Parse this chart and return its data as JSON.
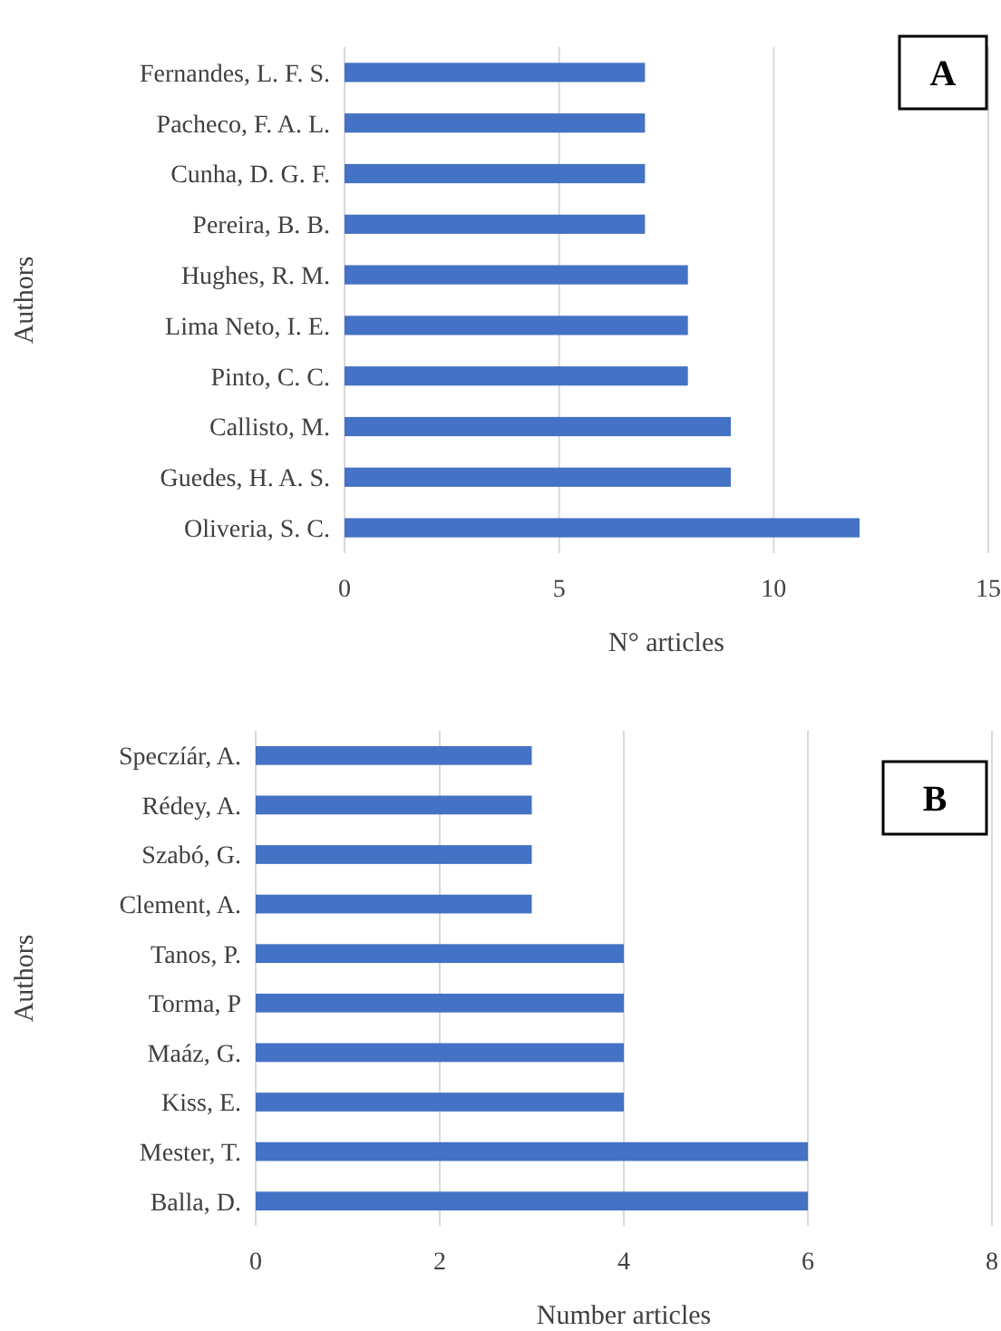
{
  "chart_data": [
    {
      "type": "bar",
      "orientation": "horizontal",
      "categories": [
        "Fernandes, L. F. S.",
        "Pacheco, F. A. L.",
        "Cunha, D. G. F.",
        "Pereira, B. B.",
        "Hughes, R. M.",
        "Lima Neto, I. E.",
        "Pinto, C. C.",
        "Callisto, M.",
        "Guedes, H. A. S.",
        "Oliveria, S. C."
      ],
      "values": [
        7,
        7,
        7,
        7,
        8,
        8,
        8,
        9,
        9,
        12
      ],
      "color": "#4472c4",
      "xlim": [
        0,
        15
      ],
      "xticks": [
        0,
        5,
        10,
        15
      ],
      "xlabel": "N° articles",
      "ylabel": "Authors",
      "grid": "x",
      "annotations": [
        "A"
      ]
    },
    {
      "type": "bar",
      "orientation": "horizontal",
      "categories": [
        "Speczíár, A.",
        "Rédey, A.",
        "Szabó, G.",
        "Clement, A.",
        "Tanos, P.",
        "Torma, P",
        "Maáz, G.",
        "Kiss, E.",
        "Mester, T.",
        "Balla, D."
      ],
      "values": [
        3,
        3,
        3,
        3,
        4,
        4,
        4,
        4,
        6,
        6
      ],
      "color": "#4472c4",
      "xlim": [
        0,
        8
      ],
      "xticks": [
        0,
        2,
        4,
        6,
        8
      ],
      "xlabel": "Number articles",
      "ylabel": "Authors",
      "grid": "x",
      "annotations": [
        "B"
      ]
    }
  ]
}
